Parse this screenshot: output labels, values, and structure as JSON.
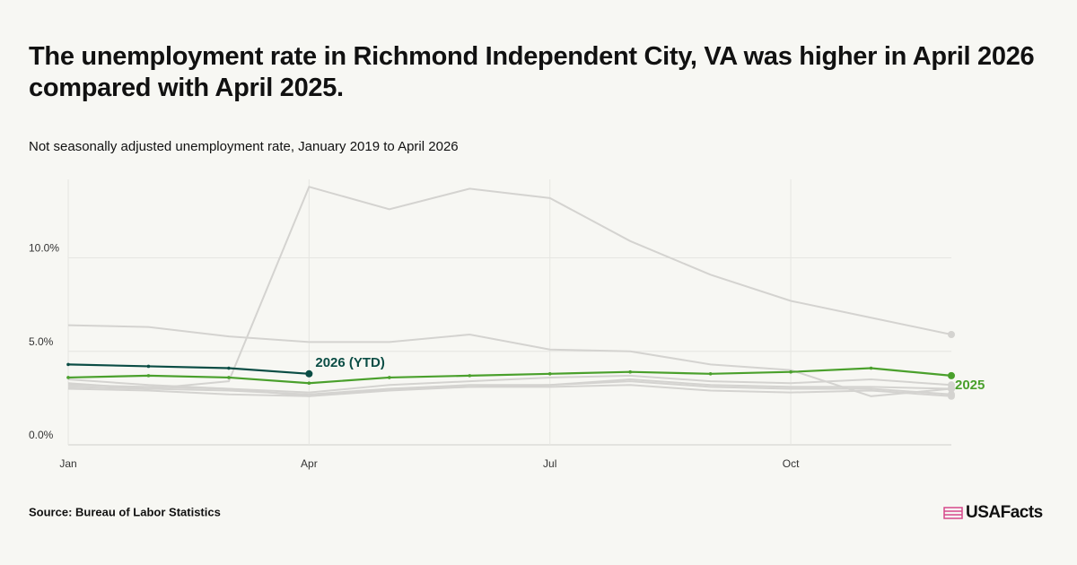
{
  "chart_data": {
    "type": "line",
    "title": "The unemployment rate in Richmond Independent City, VA was higher in April 2026 compared with April 2025.",
    "subtitle": "Not seasonally adjusted unemployment rate, January 2019 to April 2026",
    "source": "Source: Bureau of Labor Statistics",
    "brand": "USAFacts",
    "categories": [
      "Jan",
      null,
      null,
      "Apr",
      null,
      null,
      "Jul",
      null,
      null,
      "Oct",
      null,
      null
    ],
    "ylim": [
      0,
      14.2
    ],
    "yticks": [
      {
        "value": 0,
        "label": "0.0%"
      },
      {
        "value": 5,
        "label": "5.0%"
      },
      {
        "value": 10,
        "label": "10.0%"
      }
    ],
    "grid": true,
    "series": [
      {
        "color": "#d4d3d0",
        "values": [
          3.1,
          3.0,
          2.9,
          2.7,
          3.0,
          3.2,
          3.2,
          3.4,
          3.1,
          3.0,
          3.0,
          2.7
        ]
      },
      {
        "color": "#d4d3d0",
        "values": [
          3.3,
          3.0,
          3.4,
          13.8,
          12.6,
          13.7,
          13.2,
          10.9,
          9.1,
          7.7,
          6.8,
          5.9
        ]
      },
      {
        "color": "#d4d3d0",
        "values": [
          6.4,
          6.3,
          5.8,
          5.5,
          5.5,
          5.9,
          5.1,
          5.0,
          4.3,
          4.0,
          2.6,
          3.0
        ]
      },
      {
        "color": "#d4d3d0",
        "values": [
          3.5,
          3.2,
          3.0,
          2.6,
          2.9,
          3.1,
          3.1,
          3.2,
          2.9,
          2.8,
          2.9,
          2.6
        ]
      },
      {
        "color": "#d4d3d0",
        "values": [
          3.0,
          2.9,
          2.7,
          2.6,
          3.0,
          3.1,
          3.2,
          3.5,
          3.2,
          3.1,
          3.1,
          3.0
        ]
      },
      {
        "color": "#d4d3d0",
        "values": [
          3.2,
          3.1,
          3.0,
          2.8,
          3.2,
          3.4,
          3.6,
          3.7,
          3.4,
          3.3,
          3.5,
          3.2
        ]
      },
      {
        "name": "2025",
        "color": "#4aa02c",
        "values": [
          3.6,
          3.7,
          3.6,
          3.3,
          3.6,
          3.7,
          3.8,
          3.9,
          3.8,
          3.9,
          4.1,
          3.7
        ]
      },
      {
        "name": "2026 (YTD)",
        "color": "#0b4d45",
        "values": [
          4.3,
          4.2,
          4.1,
          3.8,
          null,
          null,
          null,
          null,
          null,
          null,
          null,
          null
        ]
      }
    ]
  }
}
